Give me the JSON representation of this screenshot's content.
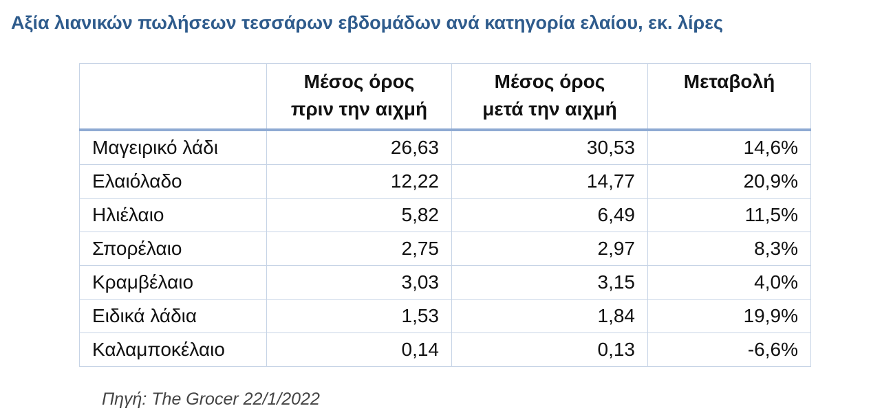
{
  "title": "Αξία λιανικών πωλήσεων τεσσάρων εβδομάδων ανά κατηγορία ελαίου, εκ. λίρες",
  "source": "Πηγή: The Grocer 22/1/2022",
  "colors": {
    "title": "#2e5b8c",
    "border": "#c7d4e6",
    "header_rule": "#8eaad3"
  },
  "chart_data": {
    "type": "table",
    "columns": [
      "",
      "Μέσος όρος πριν την αιχμή",
      "Μέσος όρος μετά την αιχμή",
      "Μεταβολή"
    ],
    "header_lines": [
      [],
      [
        "Μέσος όρος",
        "πριν την αιχμή"
      ],
      [
        "Μέσος όρος",
        "μετά την αιχμή"
      ],
      [
        "Μεταβολή"
      ]
    ],
    "rows": [
      [
        "Μαγειρικό λάδι",
        "26,63",
        "30,53",
        "14,6%"
      ],
      [
        "Ελαιόλαδο",
        "12,22",
        "14,77",
        "20,9%"
      ],
      [
        "Ηλιέλαιο",
        "5,82",
        "6,49",
        "11,5%"
      ],
      [
        "Σπορέλαιο",
        "2,75",
        "2,97",
        "8,3%"
      ],
      [
        "Κραμβέλαιο",
        "3,03",
        "3,15",
        "4,0%"
      ],
      [
        "Ειδικά λάδια",
        "1,53",
        "1,84",
        "19,9%"
      ],
      [
        "Καλαμποκέλαιο",
        "0,14",
        "0,13",
        "-6,6%"
      ]
    ]
  }
}
